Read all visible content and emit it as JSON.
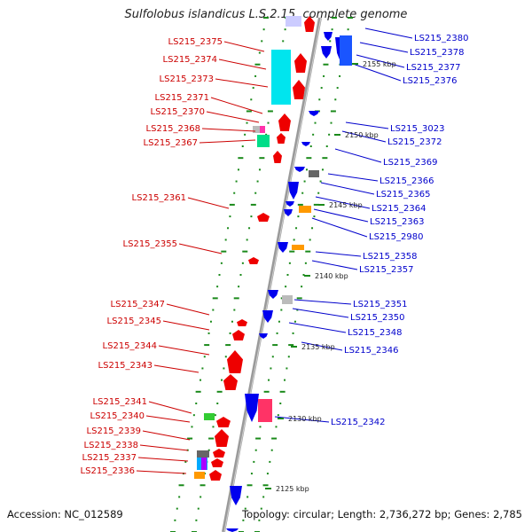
{
  "title": "Sulfolobus islandicus L.S.2.15, complete genome",
  "accession": "Accession: NC_012589",
  "topology": "Topology: circular; Length: 2,736,272 bp; Genes: 2,785",
  "colors": {
    "forward_label": "#cc0000",
    "reverse_label": "#0000cc",
    "axis": "#999999",
    "tick": "#1a8a1a"
  },
  "kbp_ticks": [
    "2155 kbp",
    "2150 kbp",
    "2145 kbp",
    "2140 kbp",
    "2135 kbp",
    "2130 kbp",
    "2125 kbp"
  ],
  "forward_genes": [
    "LS215_2375",
    "LS215_2374",
    "LS215_2373",
    "LS215_2371",
    "LS215_2370",
    "LS215_2368",
    "LS215_2367",
    "LS215_2361",
    "LS215_2355",
    "LS215_2347",
    "LS215_2345",
    "LS215_2344",
    "LS215_2343",
    "LS215_2341",
    "LS215_2340",
    "LS215_2339",
    "LS215_2338",
    "LS215_2337",
    "LS215_2336"
  ],
  "reverse_genes": [
    "LS215_2380",
    "LS215_2378",
    "LS215_2377",
    "LS215_2376",
    "LS215_3023",
    "LS215_2372",
    "LS215_2369",
    "LS215_2366",
    "LS215_2365",
    "LS215_2364",
    "LS215_2363",
    "LS215_2980",
    "LS215_2358",
    "LS215_2357",
    "LS215_2351",
    "LS215_2350",
    "LS215_2348",
    "LS215_2346",
    "LS215_2342"
  ]
}
